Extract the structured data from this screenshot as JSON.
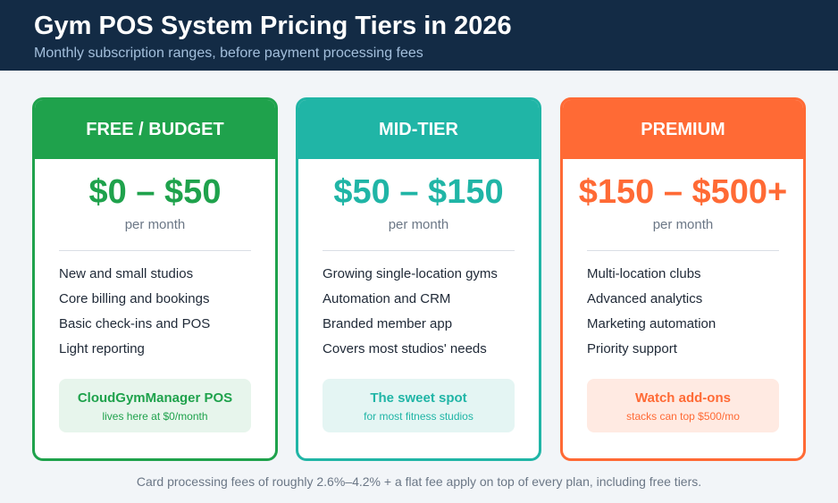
{
  "header": {
    "title": "Gym POS System Pricing Tiers in 2026",
    "subtitle": "Monthly subscription ranges, before payment processing fees"
  },
  "tiers": [
    {
      "name": "FREE / BUDGET",
      "price": "$0 – $50",
      "period": "per month",
      "color": "#1fa24c",
      "features": [
        "New and small studios",
        "Core billing and bookings",
        "Basic check-ins and POS",
        "Light reporting"
      ],
      "callout_title": "CloudGymManager POS",
      "callout_sub": "lives here at $0/month",
      "callout_bg": "#e7f5ec"
    },
    {
      "name": "MID-TIER",
      "price": "$50 – $150",
      "period": "per month",
      "color": "#20b5a6",
      "features": [
        "Growing single-location gyms",
        "Automation and CRM",
        "Branded member app",
        "Covers most studios' needs"
      ],
      "callout_title": "The sweet spot",
      "callout_sub": "for most fitness studios",
      "callout_bg": "#e4f5f3"
    },
    {
      "name": "PREMIUM",
      "price": "$150 – $500+",
      "period": "per month",
      "color": "#ff6a35",
      "features": [
        "Multi-location clubs",
        "Advanced analytics",
        "Marketing automation",
        "Priority support"
      ],
      "callout_title": "Watch add-ons",
      "callout_sub": "stacks can top $500/mo",
      "callout_bg": "#ffeae2"
    }
  ],
  "footer": {
    "note": "Card processing fees of roughly 2.6%–4.2% + a flat fee apply on top of every plan, including free tiers."
  }
}
